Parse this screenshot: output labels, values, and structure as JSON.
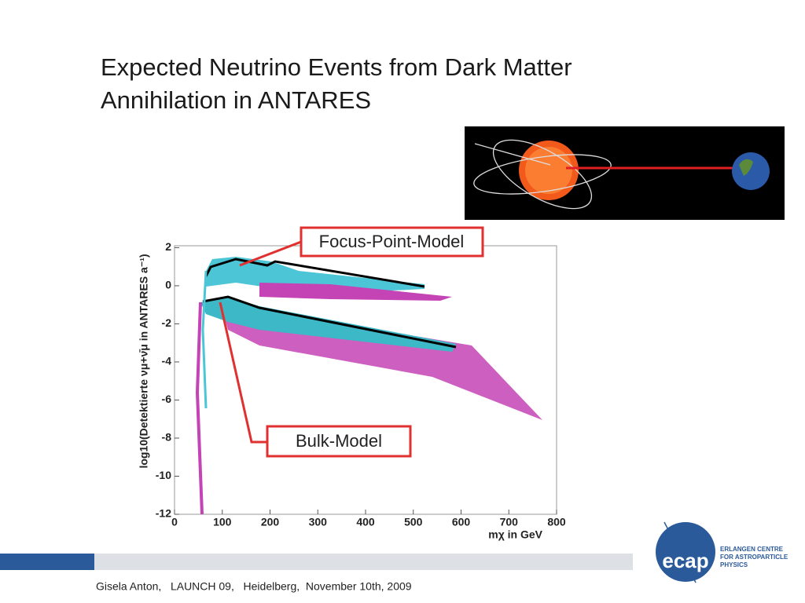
{
  "title": [
    "Expected Neutrino Events from Dark Matter",
    "Annihilation in ANTARES"
  ],
  "chart": {
    "xlabel": "mχ in GeV",
    "ylabel": "log10(Detektierte νμ+ν̄μ in ANTARES a⁻¹)",
    "xlim": [
      0,
      800
    ],
    "xticks": [
      0,
      100,
      200,
      300,
      400,
      500,
      600,
      700,
      800
    ],
    "ylim": [
      -12,
      2.1
    ],
    "yticks": [
      -12,
      -10,
      -8,
      -6,
      -4,
      -2,
      0,
      2
    ],
    "annotations": [
      "Focus-Point-Model",
      "Bulk-Model"
    ]
  },
  "footer": "Gisela Anton,   LAUNCH 09,   Heidelberg,  November 10th, 2009",
  "logo": {
    "name": "ecap",
    "lines": [
      "ERLANGEN CENTRE",
      "FOR ASTROPARTICLE",
      "PHYSICS"
    ]
  }
}
